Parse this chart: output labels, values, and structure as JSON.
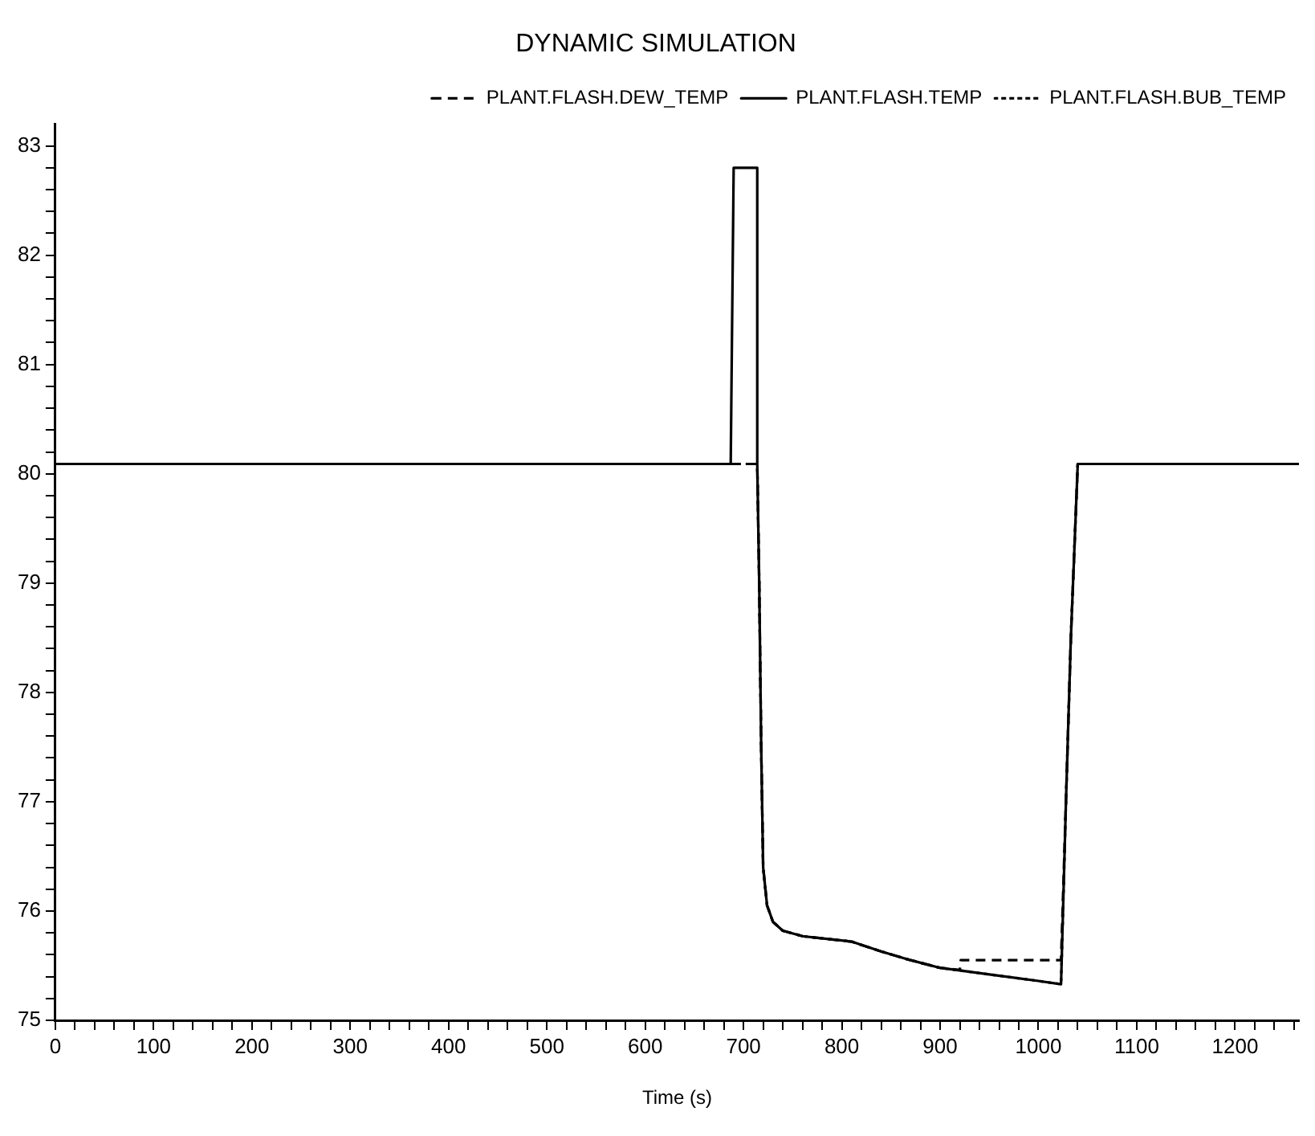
{
  "chart_data": {
    "type": "line",
    "title": "DYNAMIC SIMULATION",
    "xlabel": "Time (s)",
    "legend": "top right",
    "grid": false,
    "marker": "none",
    "xlim": [
      0,
      1265
    ],
    "xticks": [
      0,
      {
        "value": 20,
        "label": null
      },
      {
        "value": 40,
        "label": null
      },
      {
        "value": 60,
        "label": null
      },
      {
        "value": 80,
        "label": null
      },
      100,
      {
        "value": 120,
        "label": null
      },
      {
        "value": 140,
        "label": null
      },
      {
        "value": 160,
        "label": null
      },
      {
        "value": 180,
        "label": null
      },
      200,
      {
        "value": 220,
        "label": null
      },
      {
        "value": 240,
        "label": null
      },
      {
        "value": 260,
        "label": null
      },
      {
        "value": 280,
        "label": null
      },
      300,
      {
        "value": 320,
        "label": null
      },
      {
        "value": 340,
        "label": null
      },
      {
        "value": 360,
        "label": null
      },
      {
        "value": 380,
        "label": null
      },
      400,
      {
        "value": 420,
        "label": null
      },
      {
        "value": 440,
        "label": null
      },
      {
        "value": 460,
        "label": null
      },
      {
        "value": 480,
        "label": null
      },
      500,
      {
        "value": 520,
        "label": null
      },
      {
        "value": 540,
        "label": null
      },
      {
        "value": 560,
        "label": null
      },
      {
        "value": 580,
        "label": null
      },
      600,
      {
        "value": 620,
        "label": null
      },
      {
        "value": 640,
        "label": null
      },
      {
        "value": 660,
        "label": null
      },
      {
        "value": 680,
        "label": null
      },
      700,
      {
        "value": 720,
        "label": null
      },
      {
        "value": 740,
        "label": null
      },
      {
        "value": 760,
        "label": null
      },
      {
        "value": 780,
        "label": null
      },
      800,
      {
        "value": 820,
        "label": null
      },
      {
        "value": 840,
        "label": null
      },
      {
        "value": 860,
        "label": null
      },
      {
        "value": 880,
        "label": null
      },
      900,
      {
        "value": 920,
        "label": null
      },
      {
        "value": 940,
        "label": null
      },
      {
        "value": 960,
        "label": null
      },
      {
        "value": 980,
        "label": null
      },
      1000,
      {
        "value": 1020,
        "label": null
      },
      {
        "value": 1040,
        "label": null
      },
      {
        "value": 1060,
        "label": null
      },
      {
        "value": 1080,
        "label": null
      },
      1100,
      {
        "value": 1120,
        "label": null
      },
      {
        "value": 1140,
        "label": null
      },
      {
        "value": 1160,
        "label": null
      },
      {
        "value": 1180,
        "label": null
      },
      1200,
      {
        "value": 1220,
        "label": null
      },
      {
        "value": 1240,
        "label": null
      },
      {
        "value": 1260,
        "label": null
      }
    ],
    "ylim": [
      75,
      83.2
    ],
    "yticks": [
      75,
      {
        "value": 75.2,
        "label": null
      },
      {
        "value": 75.4,
        "label": null
      },
      {
        "value": 75.6,
        "label": null
      },
      {
        "value": 75.8,
        "label": null
      },
      76,
      {
        "value": 76.2,
        "label": null
      },
      {
        "value": 76.4,
        "label": null
      },
      {
        "value": 76.6,
        "label": null
      },
      {
        "value": 76.8,
        "label": null
      },
      77,
      {
        "value": 77.2,
        "label": null
      },
      {
        "value": 77.4,
        "label": null
      },
      {
        "value": 77.6,
        "label": null
      },
      {
        "value": 77.8,
        "label": null
      },
      78,
      {
        "value": 78.2,
        "label": null
      },
      {
        "value": 78.4,
        "label": null
      },
      {
        "value": 78.6,
        "label": null
      },
      {
        "value": 78.8,
        "label": null
      },
      79,
      {
        "value": 79.2,
        "label": null
      },
      {
        "value": 79.4,
        "label": null
      },
      {
        "value": 79.6,
        "label": null
      },
      {
        "value": 79.8,
        "label": null
      },
      80,
      {
        "value": 80.2,
        "label": null
      },
      {
        "value": 80.4,
        "label": null
      },
      {
        "value": 80.6,
        "label": null
      },
      {
        "value": 80.8,
        "label": null
      },
      81,
      {
        "value": 81.2,
        "label": null
      },
      {
        "value": 81.4,
        "label": null
      },
      {
        "value": 81.6,
        "label": null
      },
      {
        "value": 81.8,
        "label": null
      },
      82,
      {
        "value": 82.2,
        "label": null
      },
      {
        "value": 82.4,
        "label": null
      },
      {
        "value": 82.6,
        "label": null
      },
      {
        "value": 82.8,
        "label": null
      },
      83
    ],
    "series": [
      {
        "name": "PLANT.FLASH.DEW_TEMP",
        "color": "#000000",
        "line_style": "dashed",
        "x": [
          0,
          714,
          716,
          718,
          720,
          724,
          730,
          740,
          760,
          800,
          810,
          840,
          870,
          900,
          920,
          921,
          1023,
          1028,
          1033,
          1040,
          1265
        ],
        "values": [
          80.09,
          80.09,
          79,
          77.5,
          76.4,
          76.05,
          75.9,
          75.82,
          75.77,
          75.73,
          75.72,
          75.63,
          75.55,
          75.48,
          75.46,
          75.55,
          75.55,
          77,
          78.5,
          80.09,
          80.09
        ]
      },
      {
        "name": "PLANT.FLASH.TEMP",
        "color": "#000000",
        "line_style": "solid",
        "x": [
          0,
          687,
          690,
          714,
          714,
          716,
          718,
          720,
          724,
          730,
          740,
          760,
          800,
          810,
          840,
          870,
          900,
          950,
          1000,
          1023,
          1028,
          1033,
          1040,
          1265
        ],
        "values": [
          80.09,
          80.09,
          82.8,
          82.8,
          80.09,
          79,
          77.5,
          76.4,
          76.05,
          75.9,
          75.82,
          75.77,
          75.73,
          75.72,
          75.63,
          75.55,
          75.48,
          75.42,
          75.36,
          75.33,
          77,
          78.5,
          80.09,
          80.09
        ]
      },
      {
        "name": "PLANT.FLASH.BUB_TEMP",
        "color": "#000000",
        "line_style": "dotted",
        "x": [
          0,
          714,
          716,
          718,
          720,
          724,
          730,
          740,
          760,
          800,
          810,
          840,
          870,
          900,
          950,
          1000,
          1023,
          1028,
          1033,
          1040,
          1265
        ],
        "values": [
          80.09,
          80.09,
          79,
          77.5,
          76.4,
          76.05,
          75.9,
          75.82,
          75.77,
          75.73,
          75.72,
          75.63,
          75.55,
          75.48,
          75.42,
          75.36,
          75.33,
          77,
          78.5,
          80.09,
          80.09
        ]
      }
    ]
  }
}
